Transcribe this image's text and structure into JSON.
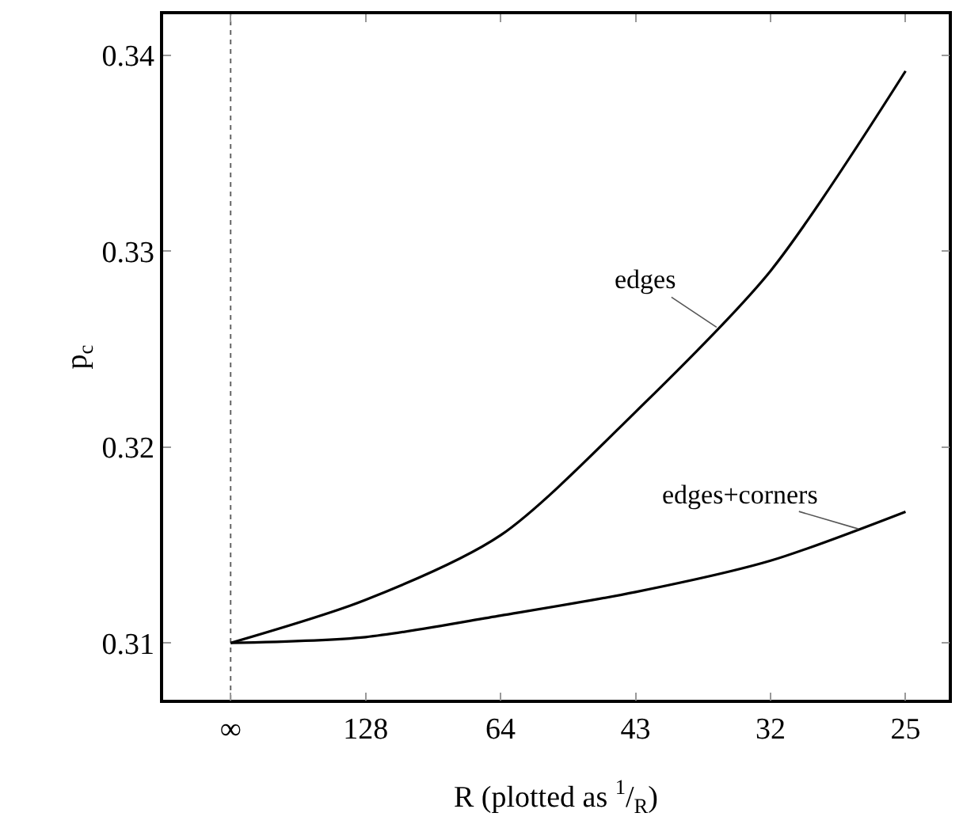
{
  "chart_data": {
    "type": "line",
    "xlabel": "R (plotted as $^{1}$/$_{R}$)",
    "ylabel": "p$_{c}$",
    "categories": [
      "∞",
      "128",
      "64",
      "43",
      "32",
      "25"
    ],
    "series": [
      {
        "name": "edges",
        "color": "#000000",
        "values": [
          0.31,
          0.3122,
          0.3155,
          0.3218,
          0.329,
          0.3392
        ]
      },
      {
        "name": "edges+corners",
        "color": "#000000",
        "values": [
          0.31,
          0.3103,
          0.3114,
          0.3126,
          0.3142,
          0.3167
        ]
      }
    ],
    "ylim": [
      0.3071,
      0.3421
    ],
    "yticks": [
      0.31,
      0.32,
      0.33,
      0.34
    ],
    "ref_lines": [
      {
        "axis": "x",
        "value": "∞",
        "line_style": "dotted",
        "color": "#666666"
      }
    ],
    "legend": false,
    "line_style": "solid"
  }
}
